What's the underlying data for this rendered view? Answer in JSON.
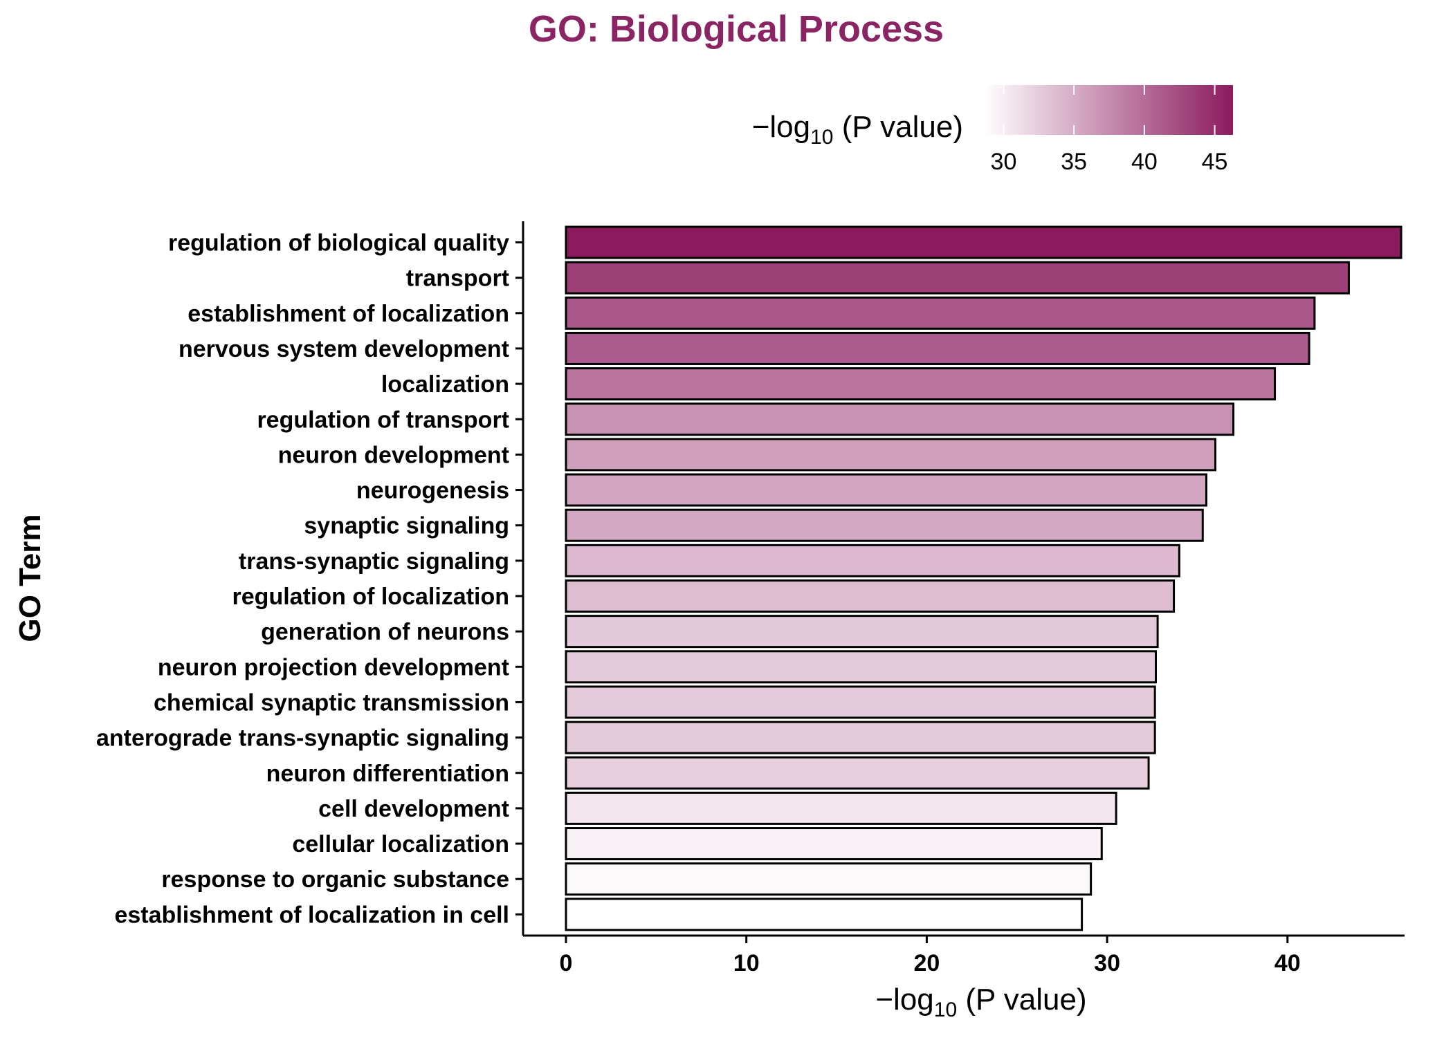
{
  "chart_data": {
    "type": "bar",
    "orientation": "horizontal",
    "title": "GO: Biological Process",
    "xlabel": "−log10 (P value)",
    "xlabel_parts": {
      "prefix": "−log",
      "subscript": "10",
      "suffix": " (P value)"
    },
    "ylabel": "GO Term",
    "xlim": [
      0,
      46.5
    ],
    "xticks": [
      0,
      10,
      20,
      30,
      40
    ],
    "grid": false,
    "categories": [
      "regulation of biological quality",
      "transport",
      "establishment of localization",
      "nervous system development",
      "localization",
      "regulation of transport",
      "neuron development",
      "neurogenesis",
      "synaptic signaling",
      "trans-synaptic signaling",
      "regulation of localization",
      "generation of neurons",
      "neuron projection development",
      "chemical synaptic transmission",
      "anterograde trans-synaptic signaling",
      "neuron differentiation",
      "cell development",
      "cellular localization",
      "response to organic substance",
      "establishment of localization in cell"
    ],
    "values": [
      46.3,
      43.4,
      41.5,
      41.2,
      39.3,
      37.0,
      36.0,
      35.5,
      35.3,
      34.0,
      33.7,
      32.8,
      32.7,
      32.65,
      32.65,
      32.3,
      30.5,
      29.7,
      29.1,
      28.6
    ],
    "legend": {
      "title": "−log10 (P value)",
      "title_parts": {
        "prefix": "−log",
        "subscript": "10",
        "suffix": " (P value)"
      },
      "type": "colorbar",
      "placement": "top",
      "range": [
        28.6,
        46.3
      ],
      "ticks": [
        30,
        35,
        40,
        45
      ],
      "color_low": "#ffffff",
      "color_high": "#8b1a5e"
    },
    "colors": {
      "title": "#8b2463",
      "bar_stroke": "#000000",
      "axis": "#000000"
    }
  }
}
